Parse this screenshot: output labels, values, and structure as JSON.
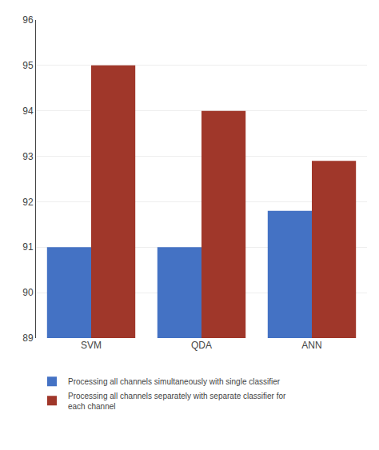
{
  "chart_data": {
    "type": "bar",
    "categories": [
      "SVM",
      "QDA",
      "ANN"
    ],
    "series": [
      {
        "name": "Processing all channels simultaneously with single classifier",
        "color": "#4472C4",
        "values": [
          91.0,
          91.0,
          91.8
        ]
      },
      {
        "name": "Processing all channels separately with separate classifier for\neach channel",
        "color": "#A0372A",
        "values": [
          95.0,
          94.0,
          92.9
        ]
      }
    ],
    "ylim": [
      89,
      96
    ],
    "yticks": [
      89,
      90,
      91,
      92,
      93,
      94,
      95,
      96
    ],
    "grid": true,
    "legend": "bottom"
  }
}
